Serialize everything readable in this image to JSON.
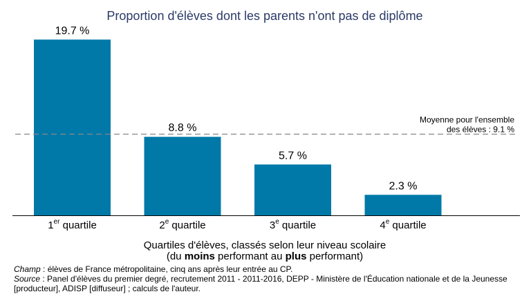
{
  "chart_data": {
    "type": "bar",
    "title": "Proportion d'élèves dont les parents n'ont pas de diplôme",
    "categories": [
      {
        "num": "1",
        "sup": "er",
        "text": " quartile"
      },
      {
        "num": "2",
        "sup": "e",
        "text": " quartile"
      },
      {
        "num": "3",
        "sup": "e",
        "text": " quartile"
      },
      {
        "num": "4",
        "sup": "e",
        "text": " quartile"
      }
    ],
    "values": [
      19.7,
      8.8,
      5.7,
      2.3
    ],
    "value_labels": [
      "19.7 %",
      "8.8 %",
      "5.7 %",
      "2.3 %"
    ],
    "ylim": [
      0,
      20.5
    ],
    "grid": false,
    "bar_color": "#0079a8",
    "title_color": "#2b3a67",
    "reference_line": {
      "value": 9.1,
      "label_line1": "Moyenne pour l'ensemble",
      "label_line2": "des élèves : 9.1 %",
      "color": "#888888"
    },
    "xlabel_line1": "Quartiles d'élèves, classés selon leur niveau scolaire",
    "xlabel_line2_parts": [
      "(du ",
      "moins",
      " performant au ",
      "plus",
      " performant)"
    ]
  },
  "notes": {
    "champ_label": "Champ",
    "champ_text": " : élèves de France métropolitaine, cinq ans après leur entrée au CP.",
    "source_label": "Source",
    "source_text": " : Panel d'élèves du premier degré, recrutement 2011 - 2011-2016, DEPP - Ministère de l'Éducation nationale et de la Jeunesse [producteur], ADISP [diffuseur] ; calculs de l'auteur."
  }
}
